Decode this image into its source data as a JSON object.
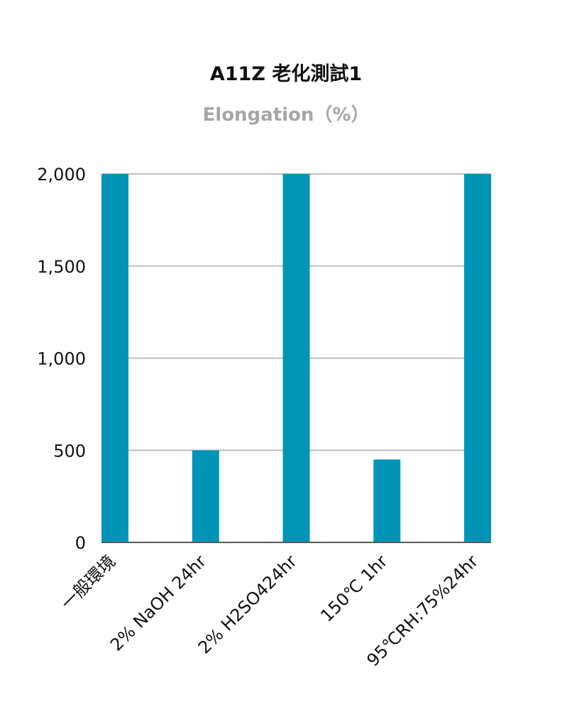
{
  "chart_data": {
    "type": "bar",
    "title": "A11Z 老化測試1",
    "subtitle": "Elongation（%）",
    "categories": [
      "一般環境",
      "2% NaOH 24hr",
      "2% H2SO424hr",
      "150℃ 1hr",
      "95℃RH:75%24hr"
    ],
    "values": [
      2000,
      500,
      2000,
      450,
      2000
    ],
    "ylim": [
      0,
      2000
    ],
    "yticks": [
      0,
      500,
      1000,
      1500,
      2000
    ],
    "ytick_labels": [
      "0",
      "500",
      "1,000",
      "1,500",
      "2,000"
    ],
    "grid": true,
    "legend": "none",
    "bar_color": "#0095b6",
    "grid_color": "#bfbfbf",
    "axis_color": "#595959"
  }
}
